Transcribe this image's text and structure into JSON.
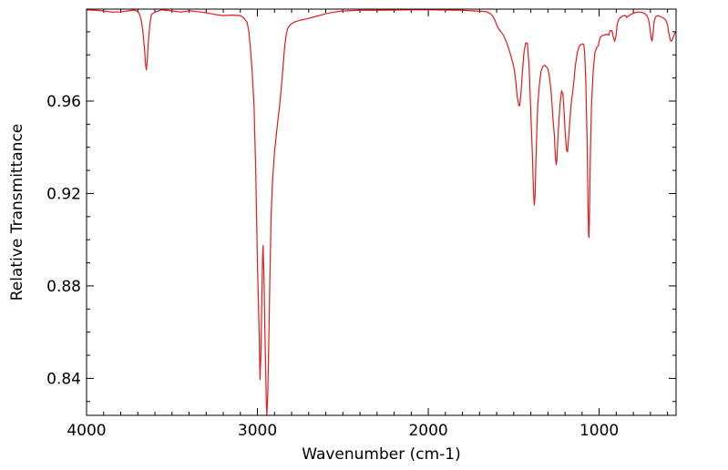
{
  "chart_data": {
    "type": "line",
    "title": "",
    "xlabel": "Wavenumber (cm-1)",
    "ylabel": "Relative Transmittance",
    "xlim": [
      4000,
      550
    ],
    "ylim": [
      0.824,
      0.9998
    ],
    "x_inverted": true,
    "grid": false,
    "legend": "none",
    "x_major_ticks": [
      4000,
      3000,
      2000,
      1000
    ],
    "x_tick_labels": [
      "4000",
      "3000",
      "2000",
      "1000"
    ],
    "y_major_ticks": [
      0.84,
      0.88,
      0.92,
      0.96
    ],
    "y_tick_labels": [
      "0.84",
      "0.88",
      "0.92",
      "0.96"
    ],
    "series": [
      {
        "color": "#e41a1c",
        "points": [
          [
            4000,
            0.9995
          ],
          [
            3950,
            0.9993
          ],
          [
            3900,
            0.999
          ],
          [
            3850,
            0.9985
          ],
          [
            3800,
            0.9986
          ],
          [
            3750,
            0.9991
          ],
          [
            3720,
            0.9994
          ],
          [
            3700,
            0.9988
          ],
          [
            3690,
            0.9975
          ],
          [
            3680,
            0.995
          ],
          [
            3670,
            0.99
          ],
          [
            3660,
            0.982
          ],
          [
            3655,
            0.976
          ],
          [
            3650,
            0.9735
          ],
          [
            3645,
            0.977
          ],
          [
            3640,
            0.984
          ],
          [
            3630,
            0.993
          ],
          [
            3620,
            0.9975
          ],
          [
            3600,
            0.9985
          ],
          [
            3560,
            0.9995
          ],
          [
            3500,
            0.999
          ],
          [
            3450,
            0.9985
          ],
          [
            3400,
            0.9991
          ],
          [
            3350,
            0.9987
          ],
          [
            3300,
            0.9982
          ],
          [
            3250,
            0.9975
          ],
          [
            3200,
            0.997
          ],
          [
            3150,
            0.9972
          ],
          [
            3100,
            0.997
          ],
          [
            3080,
            0.996
          ],
          [
            3060,
            0.994
          ],
          [
            3050,
            0.99
          ],
          [
            3040,
            0.982
          ],
          [
            3030,
            0.972
          ],
          [
            3020,
            0.958
          ],
          [
            3010,
            0.93
          ],
          [
            3000,
            0.89
          ],
          [
            2990,
            0.86
          ],
          [
            2985,
            0.8395
          ],
          [
            2980,
            0.85
          ],
          [
            2975,
            0.87
          ],
          [
            2970,
            0.892
          ],
          [
            2967,
            0.8975
          ],
          [
            2962,
            0.885
          ],
          [
            2955,
            0.855
          ],
          [
            2948,
            0.83
          ],
          [
            2945,
            0.824
          ],
          [
            2940,
            0.832
          ],
          [
            2935,
            0.85
          ],
          [
            2928,
            0.88
          ],
          [
            2920,
            0.91
          ],
          [
            2912,
            0.925
          ],
          [
            2900,
            0.938
          ],
          [
            2890,
            0.945
          ],
          [
            2880,
            0.952
          ],
          [
            2870,
            0.958
          ],
          [
            2860,
            0.966
          ],
          [
            2850,
            0.975
          ],
          [
            2840,
            0.984
          ],
          [
            2830,
            0.9895
          ],
          [
            2820,
            0.992
          ],
          [
            2800,
            0.9935
          ],
          [
            2780,
            0.9943
          ],
          [
            2750,
            0.995
          ],
          [
            2700,
            0.9958
          ],
          [
            2650,
            0.9968
          ],
          [
            2600,
            0.9978
          ],
          [
            2550,
            0.9985
          ],
          [
            2500,
            0.999
          ],
          [
            2400,
            0.9993
          ],
          [
            2300,
            0.9993
          ],
          [
            2200,
            0.9994
          ],
          [
            2100,
            0.9995
          ],
          [
            2000,
            0.9995
          ],
          [
            1900,
            0.9994
          ],
          [
            1800,
            0.9993
          ],
          [
            1750,
            0.9991
          ],
          [
            1700,
            0.9989
          ],
          [
            1660,
            0.9987
          ],
          [
            1640,
            0.998
          ],
          [
            1625,
            0.997
          ],
          [
            1610,
            0.995
          ],
          [
            1600,
            0.993
          ],
          [
            1590,
            0.9915
          ],
          [
            1580,
            0.9905
          ],
          [
            1560,
            0.9885
          ],
          [
            1540,
            0.985
          ],
          [
            1520,
            0.9805
          ],
          [
            1500,
            0.975
          ],
          [
            1490,
            0.97
          ],
          [
            1480,
            0.962
          ],
          [
            1470,
            0.958
          ],
          [
            1465,
            0.958
          ],
          [
            1458,
            0.963
          ],
          [
            1450,
            0.972
          ],
          [
            1440,
            0.981
          ],
          [
            1430,
            0.9852
          ],
          [
            1420,
            0.985
          ],
          [
            1410,
            0.975
          ],
          [
            1400,
            0.955
          ],
          [
            1390,
            0.935
          ],
          [
            1385,
            0.922
          ],
          [
            1380,
            0.915
          ],
          [
            1375,
            0.919
          ],
          [
            1370,
            0.935
          ],
          [
            1360,
            0.958
          ],
          [
            1350,
            0.967
          ],
          [
            1340,
            0.973
          ],
          [
            1330,
            0.975
          ],
          [
            1320,
            0.9755
          ],
          [
            1310,
            0.975
          ],
          [
            1300,
            0.974
          ],
          [
            1290,
            0.97
          ],
          [
            1280,
            0.963
          ],
          [
            1270,
            0.952
          ],
          [
            1262,
            0.945
          ],
          [
            1258,
            0.938
          ],
          [
            1252,
            0.9325
          ],
          [
            1248,
            0.934
          ],
          [
            1240,
            0.946
          ],
          [
            1230,
            0.958
          ],
          [
            1220,
            0.9645
          ],
          [
            1212,
            0.963
          ],
          [
            1205,
            0.955
          ],
          [
            1198,
            0.945
          ],
          [
            1190,
            0.9385
          ],
          [
            1185,
            0.938
          ],
          [
            1178,
            0.945
          ],
          [
            1165,
            0.958
          ],
          [
            1150,
            0.967
          ],
          [
            1140,
            0.975
          ],
          [
            1128,
            0.981
          ],
          [
            1115,
            0.984
          ],
          [
            1100,
            0.9848
          ],
          [
            1090,
            0.9845
          ],
          [
            1085,
            0.981
          ],
          [
            1078,
            0.968
          ],
          [
            1070,
            0.94
          ],
          [
            1065,
            0.915
          ],
          [
            1062,
            0.902
          ],
          [
            1060,
            0.901
          ],
          [
            1057,
            0.91
          ],
          [
            1052,
            0.935
          ],
          [
            1045,
            0.958
          ],
          [
            1035,
            0.973
          ],
          [
            1025,
            0.981
          ],
          [
            1015,
            0.983
          ],
          [
            1005,
            0.984
          ],
          [
            995,
            0.9875
          ],
          [
            980,
            0.9885
          ],
          [
            970,
            0.9885
          ],
          [
            955,
            0.989
          ],
          [
            945,
            0.9885
          ],
          [
            935,
            0.9905
          ],
          [
            925,
            0.9905
          ],
          [
            918,
            0.988
          ],
          [
            910,
            0.9858
          ],
          [
            902,
            0.988
          ],
          [
            895,
            0.993
          ],
          [
            885,
            0.9955
          ],
          [
            870,
            0.9965
          ],
          [
            855,
            0.997
          ],
          [
            845,
            0.997
          ],
          [
            838,
            0.9962
          ],
          [
            830,
            0.9968
          ],
          [
            815,
            0.9975
          ],
          [
            800,
            0.998
          ],
          [
            780,
            0.9985
          ],
          [
            760,
            0.9985
          ],
          [
            740,
            0.9982
          ],
          [
            720,
            0.997
          ],
          [
            710,
            0.995
          ],
          [
            700,
            0.99
          ],
          [
            695,
            0.9868
          ],
          [
            690,
            0.986
          ],
          [
            685,
            0.989
          ],
          [
            678,
            0.9945
          ],
          [
            670,
            0.9965
          ],
          [
            655,
            0.997
          ],
          [
            640,
            0.9965
          ],
          [
            625,
            0.996
          ],
          [
            610,
            0.995
          ],
          [
            600,
            0.993
          ],
          [
            590,
            0.9885
          ],
          [
            582,
            0.986
          ],
          [
            575,
            0.986
          ],
          [
            565,
            0.988
          ],
          [
            555,
            0.9898
          ],
          [
            550,
            0.99
          ]
        ]
      }
    ]
  }
}
